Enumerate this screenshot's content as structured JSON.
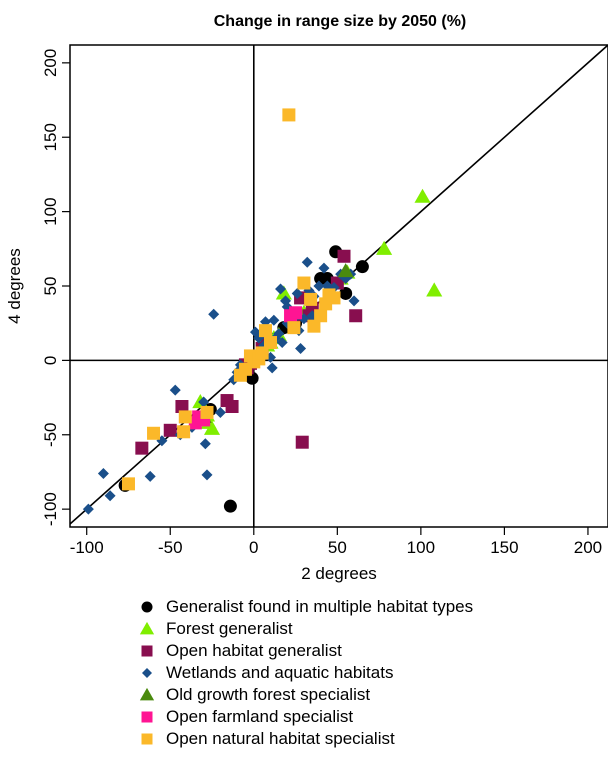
{
  "chart_data": {
    "type": "scatter",
    "title": "Change in range size by 2050 (%)",
    "xlabel": "2 degrees",
    "ylabel": "4 degrees",
    "xlim": [
      -110,
      212
    ],
    "ylim": [
      -112,
      212
    ],
    "xticks": [
      -100,
      -50,
      0,
      50,
      100,
      150,
      200
    ],
    "yticks": [
      -100,
      -50,
      0,
      50,
      100,
      150,
      200
    ],
    "grid": false,
    "legend_position": "bottom",
    "reference_lines": [
      "x=0",
      "y=0",
      "y=x"
    ],
    "series": [
      {
        "name": "Generalist found in multiple habitat types",
        "marker": "circle",
        "color": "#000000",
        "points": [
          [
            -77,
            -84
          ],
          [
            -14,
            -98
          ],
          [
            -26,
            -33
          ],
          [
            -1,
            -12
          ],
          [
            18,
            22
          ],
          [
            25,
            25
          ],
          [
            49,
            73
          ],
          [
            40,
            55
          ],
          [
            44,
            55
          ],
          [
            55,
            45
          ],
          [
            65,
            63
          ],
          [
            1,
            0
          ]
        ]
      },
      {
        "name": "Forest generalist",
        "marker": "triangle",
        "color": "#80ee00",
        "points": [
          [
            101,
            110
          ],
          [
            108,
            47
          ],
          [
            78,
            75
          ],
          [
            56,
            59
          ],
          [
            52,
            55
          ],
          [
            18,
            45
          ],
          [
            -32,
            -28
          ],
          [
            -27,
            -42
          ],
          [
            -25,
            -46
          ],
          [
            -28,
            -37
          ],
          [
            5,
            5
          ],
          [
            8,
            10
          ],
          [
            10,
            12
          ],
          [
            12,
            15
          ],
          [
            15,
            17
          ],
          [
            2,
            2
          ],
          [
            30,
            32
          ]
        ]
      },
      {
        "name": "Open habitat generalist",
        "marker": "square",
        "color": "#880e4f",
        "points": [
          [
            -67,
            -59
          ],
          [
            -50,
            -47
          ],
          [
            -43,
            -31
          ],
          [
            -16,
            -27
          ],
          [
            -13,
            -31
          ],
          [
            -4,
            -5
          ],
          [
            -2,
            -2
          ],
          [
            29,
            -55
          ],
          [
            61,
            30
          ],
          [
            54,
            70
          ],
          [
            50,
            52
          ],
          [
            28,
            42
          ],
          [
            24,
            26
          ],
          [
            33,
            30
          ],
          [
            35,
            35
          ],
          [
            8,
            12
          ],
          [
            5,
            8
          ],
          [
            -5,
            -3
          ]
        ]
      },
      {
        "name": "Wetlands and aquatic habitats",
        "marker": "diamond",
        "color": "#1a4f8a",
        "points": [
          [
            -99,
            -100
          ],
          [
            -90,
            -76
          ],
          [
            -86,
            -91
          ],
          [
            -62,
            -78
          ],
          [
            -55,
            -54
          ],
          [
            -47,
            -20
          ],
          [
            -44,
            -50
          ],
          [
            -37,
            -45
          ],
          [
            -35,
            -40
          ],
          [
            -30,
            -28
          ],
          [
            -29,
            -56
          ],
          [
            -28,
            -77
          ],
          [
            -24,
            31
          ],
          [
            -12,
            -13
          ],
          [
            -10,
            -8
          ],
          [
            -8,
            -3
          ],
          [
            1,
            19
          ],
          [
            3,
            15
          ],
          [
            6,
            10
          ],
          [
            7,
            26
          ],
          [
            8,
            18
          ],
          [
            10,
            2
          ],
          [
            11,
            -5
          ],
          [
            12,
            27
          ],
          [
            13,
            15
          ],
          [
            15,
            18
          ],
          [
            16,
            48
          ],
          [
            17,
            12
          ],
          [
            19,
            40
          ],
          [
            20,
            36
          ],
          [
            24,
            28
          ],
          [
            26,
            45
          ],
          [
            27,
            20
          ],
          [
            28,
            8
          ],
          [
            30,
            28
          ],
          [
            32,
            66
          ],
          [
            33,
            47
          ],
          [
            35,
            30
          ],
          [
            36,
            43
          ],
          [
            39,
            50
          ],
          [
            42,
            62
          ],
          [
            44,
            50
          ],
          [
            46,
            44
          ],
          [
            48,
            49
          ],
          [
            52,
            58
          ],
          [
            55,
            55
          ],
          [
            58,
            58
          ],
          [
            60,
            40
          ],
          [
            -20,
            -35
          ],
          [
            20,
            25
          ]
        ]
      },
      {
        "name": "Old growth forest specialist",
        "marker": "triangle",
        "color": "#4a8a0e",
        "points": [
          [
            55,
            60
          ],
          [
            -30,
            -38
          ]
        ]
      },
      {
        "name": "Open farmland specialist",
        "marker": "square",
        "color": "#ff1493",
        "points": [
          [
            -35,
            -42
          ],
          [
            -33,
            -38
          ],
          [
            -30,
            -40
          ],
          [
            22,
            30
          ],
          [
            25,
            32
          ]
        ]
      },
      {
        "name": "Open natural habitat specialist",
        "marker": "square",
        "color": "#fbb829",
        "points": [
          [
            21,
            165
          ],
          [
            -75,
            -83
          ],
          [
            -60,
            -49
          ],
          [
            -42,
            -48
          ],
          [
            -41,
            -38
          ],
          [
            -28,
            -35
          ],
          [
            -8,
            -10
          ],
          [
            -5,
            -6
          ],
          [
            -2,
            3
          ],
          [
            0,
            -1
          ],
          [
            3,
            1
          ],
          [
            5,
            5
          ],
          [
            7,
            20
          ],
          [
            10,
            12
          ],
          [
            30,
            52
          ],
          [
            34,
            41
          ],
          [
            36,
            23
          ],
          [
            43,
            38
          ],
          [
            45,
            44
          ],
          [
            48,
            42
          ],
          [
            24,
            22
          ],
          [
            40,
            30
          ]
        ]
      }
    ]
  }
}
